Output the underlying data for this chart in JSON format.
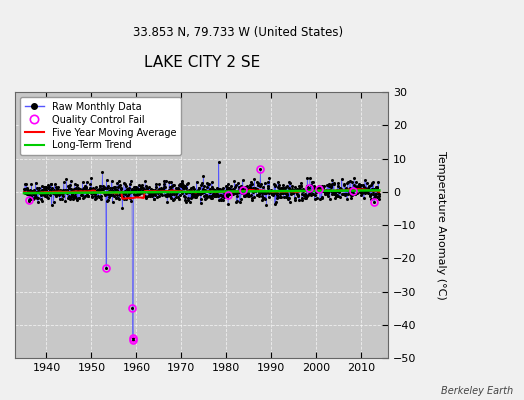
{
  "title": "LAKE CITY 2 SE",
  "subtitle": "33.853 N, 79.733 W (United States)",
  "ylabel": "Temperature Anomaly (°C)",
  "credit": "Berkeley Earth",
  "xlim": [
    1933,
    2016
  ],
  "ylim": [
    -50,
    30
  ],
  "yticks": [
    -50,
    -40,
    -30,
    -20,
    -10,
    0,
    10,
    20,
    30
  ],
  "xticks": [
    1940,
    1950,
    1960,
    1970,
    1980,
    1990,
    2000,
    2010
  ],
  "bg_color": "#f0f0f0",
  "plot_bg_color": "#c8c8c8",
  "raw_line_color": "#5555ff",
  "raw_dot_color": "#000000",
  "qc_fail_color": "#ff00ff",
  "moving_avg_color": "#ff0000",
  "trend_color": "#00cc00",
  "seed": 42,
  "spike1_year": 1953,
  "spike1_val": -23,
  "spike2_year": 1959,
  "spike2_val1": -35,
  "spike2_val2": -44,
  "spike2_val3": -44.5,
  "anomaly_high_1987": 7,
  "anomaly_high_1978": 9
}
